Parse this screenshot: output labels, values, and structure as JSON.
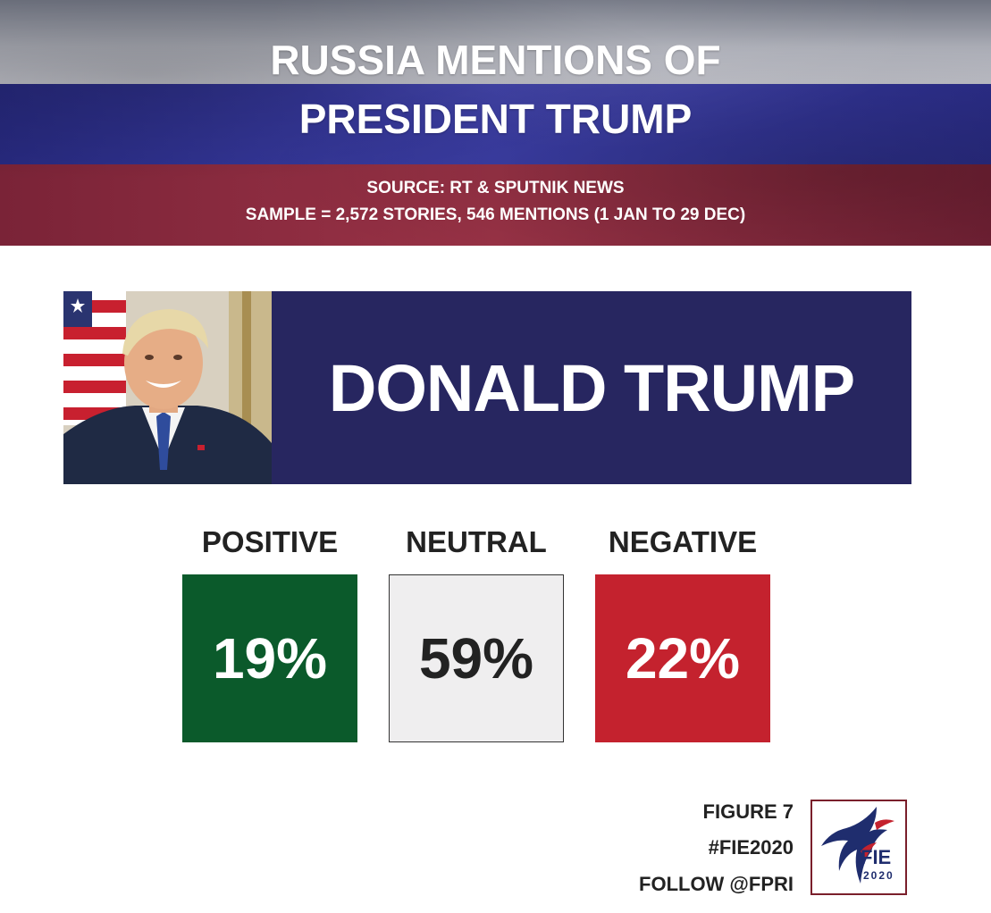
{
  "header": {
    "title_line1": "RUSSIA MENTIONS OF",
    "title_line2": "PRESIDENT TRUMP",
    "source": "SOURCE: RT & SPUTNIK NEWS",
    "sample": "SAMPLE = 2,572 STORIES, 546 MENTIONS (1 JAN TO 29 DEC)",
    "flag_colors": [
      "#b5b7c0",
      "#3335a0",
      "#8c2b40"
    ]
  },
  "subject": {
    "name": "DONALD TRUMP",
    "panel_color": "#272660"
  },
  "metrics": [
    {
      "label": "POSITIVE",
      "value": "19%",
      "color": "#0b5a2b",
      "text_color": "#ffffff"
    },
    {
      "label": "NEUTRAL",
      "value": "59%",
      "color": "#efeeef",
      "text_color": "#222222"
    },
    {
      "label": "NEGATIVE",
      "value": "22%",
      "color": "#c4222e",
      "text_color": "#ffffff"
    }
  ],
  "footer": {
    "figure": "FIGURE 7",
    "hashtag": "#FIE2020",
    "follow": "FOLLOW @FPRI"
  },
  "logo": {
    "text": "FIE",
    "year": "2020",
    "color": "#7a1f2b",
    "bird_color": "#1f2d6e"
  }
}
